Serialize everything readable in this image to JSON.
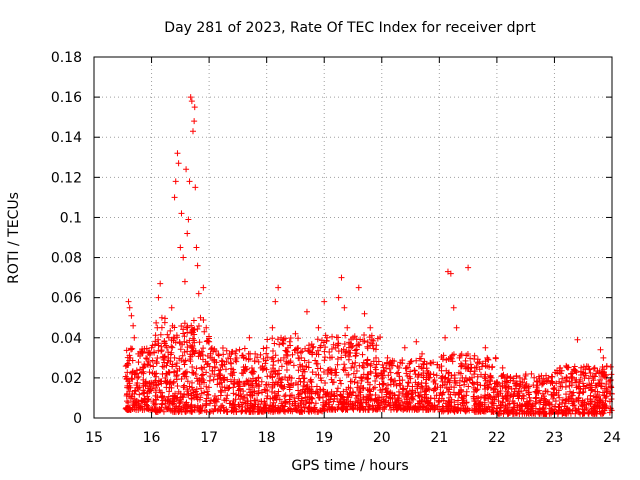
{
  "chart_data": {
    "type": "scatter",
    "title": "Day 281 of 2023, Rate Of TEC Index for receiver dprt",
    "xlabel": "GPS time / hours",
    "ylabel": "ROTI / TECUs",
    "xlim": [
      15,
      24
    ],
    "ylim": [
      0,
      0.18
    ],
    "xticks": [
      "15",
      "16",
      "17",
      "18",
      "19",
      "20",
      "21",
      "22",
      "23",
      "24"
    ],
    "yticks": [
      "0",
      "0.02",
      "0.04",
      "0.06",
      "0.08",
      "0.1",
      "0.12",
      "0.14",
      "0.16",
      "0.18"
    ],
    "grid": true,
    "marker": "+",
    "color": "#ff0000",
    "series": [
      {
        "name": "ROTI",
        "points": [
          [
            15.6,
            0.058
          ],
          [
            15.62,
            0.055
          ],
          [
            15.65,
            0.051
          ],
          [
            15.68,
            0.046
          ],
          [
            15.7,
            0.04
          ],
          [
            15.63,
            0.03
          ],
          [
            15.66,
            0.022
          ],
          [
            15.6,
            0.015
          ],
          [
            15.64,
            0.01
          ],
          [
            15.7,
            0.012
          ],
          [
            15.75,
            0.02
          ],
          [
            15.8,
            0.033
          ],
          [
            15.85,
            0.025
          ],
          [
            15.9,
            0.017
          ],
          [
            15.95,
            0.028
          ],
          [
            16.0,
            0.035
          ],
          [
            16.05,
            0.022
          ],
          [
            16.1,
            0.045
          ],
          [
            16.12,
            0.06
          ],
          [
            16.15,
            0.067
          ],
          [
            16.18,
            0.05
          ],
          [
            16.2,
            0.03
          ],
          [
            16.25,
            0.018
          ],
          [
            16.3,
            0.04
          ],
          [
            16.35,
            0.055
          ],
          [
            16.4,
            0.11
          ],
          [
            16.42,
            0.118
          ],
          [
            16.45,
            0.132
          ],
          [
            16.47,
            0.127
          ],
          [
            16.5,
            0.085
          ],
          [
            16.52,
            0.102
          ],
          [
            16.55,
            0.08
          ],
          [
            16.58,
            0.068
          ],
          [
            16.6,
            0.124
          ],
          [
            16.62,
            0.092
          ],
          [
            16.64,
            0.099
          ],
          [
            16.66,
            0.118
          ],
          [
            16.68,
            0.16
          ],
          [
            16.7,
            0.158
          ],
          [
            16.72,
            0.143
          ],
          [
            16.74,
            0.148
          ],
          [
            16.75,
            0.155
          ],
          [
            16.76,
            0.115
          ],
          [
            16.78,
            0.085
          ],
          [
            16.8,
            0.076
          ],
          [
            16.82,
            0.062
          ],
          [
            16.85,
            0.05
          ],
          [
            16.9,
            0.065
          ],
          [
            16.95,
            0.045
          ],
          [
            17.0,
            0.038
          ],
          [
            17.05,
            0.03
          ],
          [
            17.1,
            0.025
          ],
          [
            17.2,
            0.02
          ],
          [
            17.3,
            0.028
          ],
          [
            17.4,
            0.022
          ],
          [
            17.5,
            0.018
          ],
          [
            17.6,
            0.03
          ],
          [
            17.7,
            0.04
          ],
          [
            17.8,
            0.032
          ],
          [
            17.9,
            0.025
          ],
          [
            18.0,
            0.035
          ],
          [
            18.1,
            0.045
          ],
          [
            18.15,
            0.058
          ],
          [
            18.2,
            0.065
          ],
          [
            18.25,
            0.04
          ],
          [
            18.3,
            0.03
          ],
          [
            18.4,
            0.038
          ],
          [
            18.5,
            0.042
          ],
          [
            18.6,
            0.03
          ],
          [
            18.7,
            0.053
          ],
          [
            18.8,
            0.035
          ],
          [
            18.9,
            0.045
          ],
          [
            19.0,
            0.058
          ],
          [
            19.05,
            0.04
          ],
          [
            19.1,
            0.03
          ],
          [
            19.2,
            0.035
          ],
          [
            19.25,
            0.06
          ],
          [
            19.3,
            0.07
          ],
          [
            19.35,
            0.055
          ],
          [
            19.4,
            0.045
          ],
          [
            19.5,
            0.04
          ],
          [
            19.6,
            0.065
          ],
          [
            19.7,
            0.052
          ],
          [
            19.8,
            0.045
          ],
          [
            19.9,
            0.03
          ],
          [
            20.0,
            0.022
          ],
          [
            20.1,
            0.03
          ],
          [
            20.2,
            0.018
          ],
          [
            20.3,
            0.025
          ],
          [
            20.4,
            0.035
          ],
          [
            20.5,
            0.028
          ],
          [
            20.6,
            0.038
          ],
          [
            20.7,
            0.032
          ],
          [
            20.8,
            0.022
          ],
          [
            20.9,
            0.018
          ],
          [
            21.0,
            0.025
          ],
          [
            21.1,
            0.04
          ],
          [
            21.15,
            0.073
          ],
          [
            21.2,
            0.072
          ],
          [
            21.25,
            0.055
          ],
          [
            21.3,
            0.045
          ],
          [
            21.35,
            0.03
          ],
          [
            21.4,
            0.02
          ],
          [
            21.5,
            0.075
          ],
          [
            21.55,
            0.025
          ],
          [
            21.6,
            0.015
          ],
          [
            21.7,
            0.028
          ],
          [
            21.8,
            0.035
          ],
          [
            21.9,
            0.02
          ],
          [
            22.0,
            0.018
          ],
          [
            22.1,
            0.025
          ],
          [
            22.2,
            0.015
          ],
          [
            22.3,
            0.012
          ],
          [
            22.4,
            0.02
          ],
          [
            22.5,
            0.016
          ],
          [
            22.6,
            0.022
          ],
          [
            22.7,
            0.018
          ],
          [
            22.8,
            0.012
          ],
          [
            22.9,
            0.02
          ],
          [
            23.0,
            0.015
          ],
          [
            23.1,
            0.025
          ],
          [
            23.2,
            0.018
          ],
          [
            23.3,
            0.012
          ],
          [
            23.4,
            0.039
          ],
          [
            23.5,
            0.022
          ],
          [
            23.6,
            0.015
          ],
          [
            23.7,
            0.025
          ],
          [
            23.8,
            0.034
          ],
          [
            23.85,
            0.03
          ],
          [
            23.9,
            0.02
          ],
          [
            23.95,
            0.018
          ],
          [
            24.0,
            0.012
          ]
        ]
      }
    ],
    "cloud": [
      {
        "from": 15.55,
        "to": 16.0,
        "low": 0.004,
        "high": 0.035,
        "count": 160
      },
      {
        "from": 16.0,
        "to": 17.0,
        "low": 0.003,
        "high": 0.05,
        "count": 380
      },
      {
        "from": 17.0,
        "to": 18.0,
        "low": 0.003,
        "high": 0.035,
        "count": 300
      },
      {
        "from": 18.0,
        "to": 19.0,
        "low": 0.003,
        "high": 0.04,
        "count": 320
      },
      {
        "from": 19.0,
        "to": 20.0,
        "low": 0.004,
        "high": 0.042,
        "count": 320
      },
      {
        "from": 20.0,
        "to": 21.0,
        "low": 0.004,
        "high": 0.03,
        "count": 300
      },
      {
        "from": 21.0,
        "to": 22.0,
        "low": 0.003,
        "high": 0.032,
        "count": 300
      },
      {
        "from": 22.0,
        "to": 23.0,
        "low": 0.002,
        "high": 0.022,
        "count": 280
      },
      {
        "from": 23.0,
        "to": 24.0,
        "low": 0.002,
        "high": 0.026,
        "count": 300
      }
    ]
  }
}
